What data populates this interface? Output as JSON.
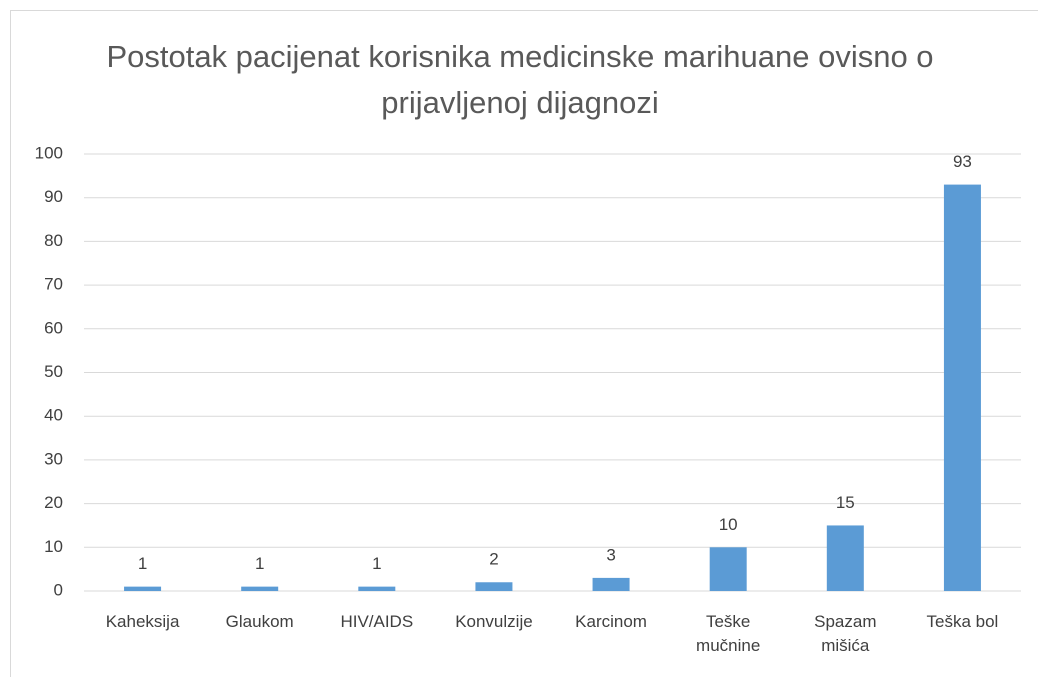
{
  "chart_data": {
    "type": "bar",
    "title": "Postotak pacijenat korisnika medicinske marihuane ovisno o prijavljenoj dijagnozi",
    "categories": [
      "Kaheksija",
      "Glaukom",
      "HIV/AIDS",
      "Konvulzije",
      "Karcinom",
      "Teške mučnine",
      "Spazam mišića",
      "Teška bol"
    ],
    "values": [
      1,
      1,
      1,
      2,
      3,
      10,
      15,
      93
    ],
    "color": "#5b9bd5",
    "ylim": [
      0,
      100
    ],
    "yticks": [
      0,
      10,
      20,
      30,
      40,
      50,
      60,
      70,
      80,
      90,
      100
    ],
    "grid": true
  }
}
